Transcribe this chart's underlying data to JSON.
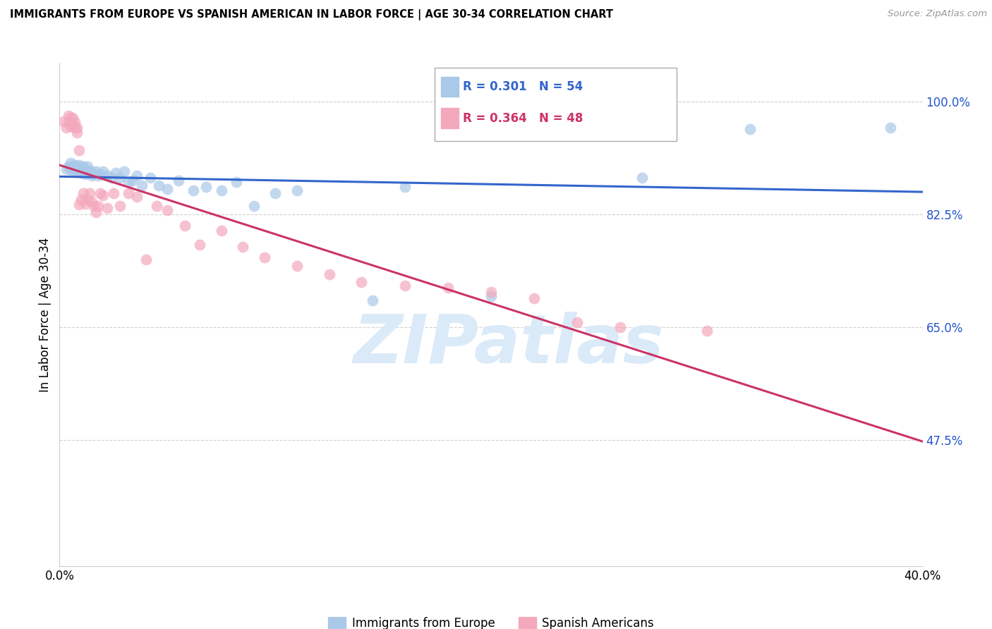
{
  "title": "IMMIGRANTS FROM EUROPE VS SPANISH AMERICAN IN LABOR FORCE | AGE 30-34 CORRELATION CHART",
  "source": "Source: ZipAtlas.com",
  "ylabel": "In Labor Force | Age 30-34",
  "xlim": [
    0.0,
    0.4
  ],
  "ylim": [
    0.28,
    1.06
  ],
  "ytick_vals": [
    0.475,
    0.65,
    0.825,
    1.0
  ],
  "ytick_labels": [
    "47.5%",
    "65.0%",
    "82.5%",
    "100.0%"
  ],
  "xtick_vals": [
    0.0,
    0.05,
    0.1,
    0.15,
    0.2,
    0.25,
    0.3,
    0.35,
    0.4
  ],
  "xtick_labels": [
    "0.0%",
    "",
    "",
    "",
    "",
    "",
    "",
    "",
    "40.0%"
  ],
  "blue_R": "0.301",
  "blue_N": "54",
  "pink_R": "0.364",
  "pink_N": "48",
  "blue_marker_color": "#aac8e8",
  "pink_marker_color": "#f4a8bc",
  "blue_line_color": "#3366cc",
  "pink_line_color": "#cc3366",
  "grid_color": "#cccccc",
  "tick_color": "#2255cc",
  "watermark_color": "#daeaf8",
  "blue_x": [
    0.003,
    0.004,
    0.005,
    0.005,
    0.006,
    0.006,
    0.007,
    0.007,
    0.008,
    0.008,
    0.009,
    0.009,
    0.01,
    0.01,
    0.011,
    0.011,
    0.012,
    0.012,
    0.013,
    0.013,
    0.014,
    0.015,
    0.015,
    0.016,
    0.017,
    0.018,
    0.019,
    0.02,
    0.022,
    0.024,
    0.026,
    0.028,
    0.03,
    0.032,
    0.034,
    0.036,
    0.038,
    0.042,
    0.046,
    0.05,
    0.055,
    0.062,
    0.068,
    0.075,
    0.082,
    0.09,
    0.1,
    0.11,
    0.145,
    0.16,
    0.2,
    0.27,
    0.32,
    0.385
  ],
  "blue_y": [
    0.895,
    0.9,
    0.895,
    0.905,
    0.892,
    0.9,
    0.895,
    0.902,
    0.892,
    0.9,
    0.895,
    0.902,
    0.89,
    0.898,
    0.892,
    0.9,
    0.888,
    0.895,
    0.892,
    0.9,
    0.892,
    0.885,
    0.892,
    0.888,
    0.892,
    0.885,
    0.888,
    0.892,
    0.885,
    0.882,
    0.89,
    0.882,
    0.892,
    0.875,
    0.878,
    0.885,
    0.87,
    0.882,
    0.87,
    0.865,
    0.878,
    0.862,
    0.868,
    0.862,
    0.875,
    0.838,
    0.858,
    0.862,
    0.692,
    0.868,
    0.698,
    0.882,
    0.958,
    0.96
  ],
  "pink_x": [
    0.002,
    0.003,
    0.004,
    0.004,
    0.005,
    0.005,
    0.006,
    0.006,
    0.007,
    0.007,
    0.008,
    0.008,
    0.009,
    0.009,
    0.01,
    0.011,
    0.012,
    0.013,
    0.014,
    0.015,
    0.016,
    0.017,
    0.018,
    0.019,
    0.02,
    0.022,
    0.025,
    0.028,
    0.032,
    0.036,
    0.04,
    0.045,
    0.05,
    0.058,
    0.065,
    0.075,
    0.085,
    0.095,
    0.11,
    0.125,
    0.14,
    0.16,
    0.18,
    0.2,
    0.22,
    0.24,
    0.26,
    0.3
  ],
  "pink_y": [
    0.97,
    0.96,
    0.968,
    0.978,
    0.962,
    0.975,
    0.965,
    0.975,
    0.96,
    0.968,
    0.952,
    0.96,
    0.84,
    0.925,
    0.848,
    0.858,
    0.842,
    0.848,
    0.858,
    0.845,
    0.838,
    0.828,
    0.838,
    0.858,
    0.855,
    0.835,
    0.858,
    0.838,
    0.858,
    0.852,
    0.755,
    0.838,
    0.832,
    0.808,
    0.778,
    0.8,
    0.775,
    0.758,
    0.745,
    0.732,
    0.72,
    0.715,
    0.712,
    0.705,
    0.695,
    0.658,
    0.65,
    0.645
  ]
}
